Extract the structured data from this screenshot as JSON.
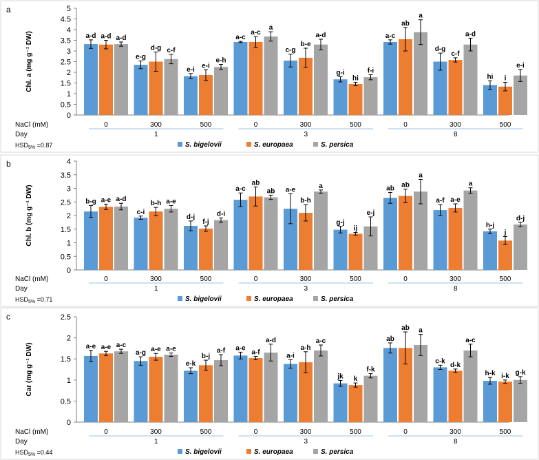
{
  "colors": {
    "bigelovii": "#5b9bd5",
    "europaea": "#ed7d31",
    "persica": "#a5a5a5",
    "axis": "#7f7f7f",
    "bracket": "#9dc3e6",
    "panel_border": "#d9d9d9"
  },
  "legend": [
    {
      "key": "bigelovii",
      "label": "S. bigelovii"
    },
    {
      "key": "europaea",
      "label": "S. europaea"
    },
    {
      "key": "persica",
      "label": "S. persica"
    }
  ],
  "x_axis": {
    "nacl_label": "NaCl (mM)",
    "day_label": "Day",
    "nacl_levels": [
      "0",
      "300",
      "500",
      "0",
      "300",
      "500",
      "0",
      "300",
      "500"
    ],
    "days": [
      "1",
      "3",
      "8"
    ]
  },
  "chart_data": [
    {
      "panel": "a",
      "type": "bar",
      "ylabel": "Chl. a (mg g⁻¹ DW)",
      "ylim": [
        0,
        5
      ],
      "yticks": [
        "0",
        "0.5",
        "1",
        "1.5",
        "2",
        "2.5",
        "3",
        "3.5",
        "4",
        "4.5",
        "5"
      ],
      "hsd": "0.87",
      "series": [
        {
          "name": "S. bigelovii",
          "values": [
            3.32,
            2.35,
            1.82,
            3.42,
            2.55,
            1.67,
            3.42,
            2.5,
            1.4
          ],
          "errors": [
            0.2,
            0.18,
            0.12,
            0.03,
            0.3,
            0.12,
            0.1,
            0.4,
            0.2
          ],
          "letters": [
            "a-d",
            "e-g",
            "e-i",
            "a-c",
            "c-g",
            "g-i",
            "a-c",
            "d-g",
            "hi"
          ]
        },
        {
          "name": "S. europaea",
          "values": [
            3.3,
            2.5,
            1.87,
            3.42,
            2.68,
            1.45,
            3.55,
            2.58,
            1.33
          ],
          "errors": [
            0.2,
            0.45,
            0.25,
            0.25,
            0.45,
            0.08,
            0.55,
            0.1,
            0.2
          ],
          "letters": [
            "a-d",
            "d-g",
            "e-i",
            "a-c",
            "b-e",
            "hi",
            "ab",
            "c-f",
            "i"
          ]
        },
        {
          "name": "S. persica",
          "values": [
            3.32,
            2.62,
            2.25,
            3.68,
            3.3,
            1.77,
            3.88,
            3.3,
            1.85
          ],
          "errors": [
            0.1,
            0.22,
            0.12,
            0.22,
            0.25,
            0.12,
            0.58,
            0.3,
            0.28
          ],
          "letters": [
            "a-d",
            "c-f",
            "e-h",
            "a",
            "a-d",
            "f-i",
            "a",
            "a-d",
            "e-i"
          ]
        }
      ]
    },
    {
      "panel": "b",
      "type": "bar",
      "ylabel": "Chl. b (mg g⁻¹ DW)",
      "ylim": [
        0,
        4
      ],
      "yticks": [
        "0",
        "0.5",
        "1",
        "1.5",
        "2",
        "2.5",
        "3",
        "3.5",
        "4"
      ],
      "hsd": "0.71",
      "series": [
        {
          "name": "S. bigelovii",
          "values": [
            2.15,
            1.92,
            1.62,
            2.58,
            2.25,
            1.48,
            2.65,
            2.2,
            1.42
          ],
          "errors": [
            0.22,
            0.06,
            0.18,
            0.25,
            0.55,
            0.12,
            0.2,
            0.2,
            0.08
          ],
          "letters": [
            "b-g",
            "c-i",
            "d-j",
            "a-c",
            "a-e",
            "g-j",
            "ab",
            "a-f",
            "h-j"
          ]
        },
        {
          "name": "S. europaea",
          "values": [
            2.32,
            2.15,
            1.52,
            2.7,
            2.1,
            1.33,
            2.72,
            2.28,
            1.08
          ],
          "errors": [
            0.1,
            0.15,
            0.1,
            0.35,
            0.3,
            0.05,
            0.25,
            0.15,
            0.15
          ],
          "letters": [
            "a-e",
            "b-h",
            "f-j",
            "ab",
            "b-h",
            "ij",
            "ab",
            "a-e",
            "j"
          ]
        },
        {
          "name": "S. persica",
          "values": [
            2.33,
            2.25,
            1.83,
            2.67,
            2.88,
            1.6,
            2.88,
            2.92,
            1.67
          ],
          "errors": [
            0.12,
            0.12,
            0.08,
            0.08,
            0.06,
            0.35,
            0.45,
            0.1,
            0.08
          ],
          "letters": [
            "a-d",
            "a-e",
            "d-i",
            "ab",
            "a",
            "e-j",
            "a",
            "a",
            "d-j"
          ]
        }
      ]
    },
    {
      "panel": "c",
      "type": "bar",
      "ylabel": "Car (mg g⁻¹ DW)",
      "ylim": [
        0,
        2.5
      ],
      "yticks": [
        "0",
        "0.5",
        "1",
        "1.5",
        "2",
        "2.5"
      ],
      "hsd": "0.44",
      "series": [
        {
          "name": "S. bigelovii",
          "values": [
            1.57,
            1.45,
            1.22,
            1.58,
            1.38,
            0.92,
            1.76,
            1.3,
            0.98
          ],
          "errors": [
            0.13,
            0.1,
            0.07,
            0.08,
            0.1,
            0.07,
            0.12,
            0.05,
            0.08
          ],
          "letters": [
            "a-e",
            "a-g",
            "e-k",
            "a-e",
            "a-i",
            "jk",
            "ab",
            "c-k",
            "h-k"
          ]
        },
        {
          "name": "S. europaea",
          "values": [
            1.63,
            1.55,
            1.35,
            1.52,
            1.42,
            0.88,
            1.76,
            1.22,
            0.96
          ],
          "errors": [
            0.05,
            0.08,
            0.12,
            0.04,
            0.25,
            0.05,
            0.38,
            0.04,
            0.04
          ],
          "letters": [
            "a-e",
            "a-e",
            "b-j",
            "a-f",
            "a-h",
            "k",
            "ab",
            "d-k",
            "i-k"
          ]
        },
        {
          "name": "S. persica",
          "values": [
            1.68,
            1.6,
            1.47,
            1.65,
            1.7,
            1.1,
            1.83,
            1.7,
            1.0
          ],
          "errors": [
            0.05,
            0.04,
            0.13,
            0.2,
            0.13,
            0.05,
            0.25,
            0.15,
            0.08
          ],
          "letters": [
            "a-c",
            "a-e",
            "a-f",
            "a-d",
            "a-c",
            "f-k",
            "a",
            "a-c",
            "g-k"
          ]
        }
      ]
    }
  ]
}
